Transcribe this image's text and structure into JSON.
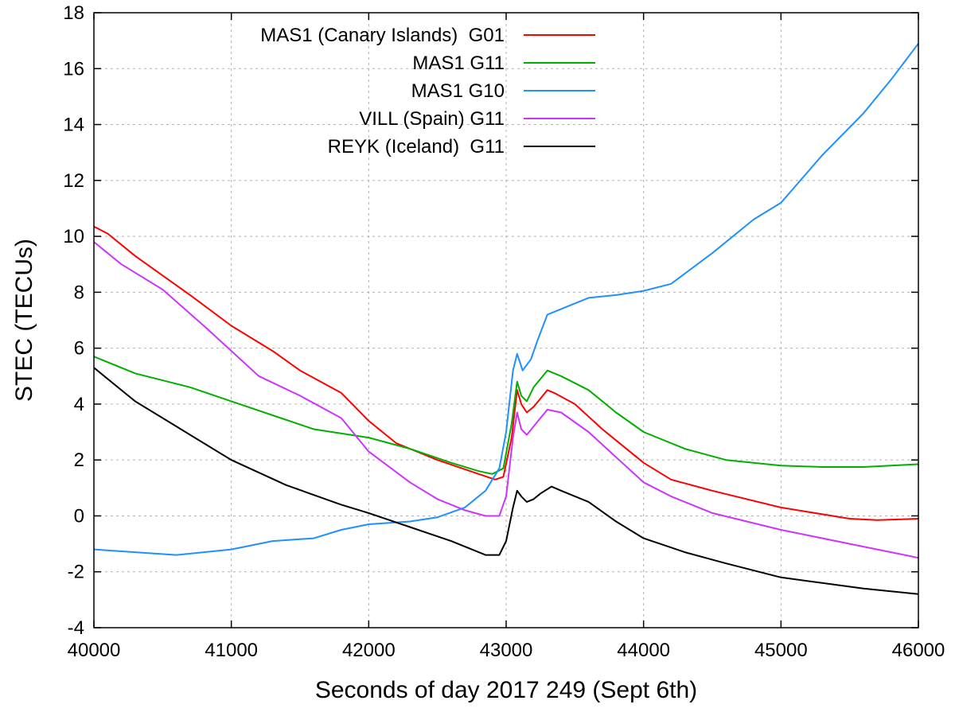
{
  "chart_data": {
    "type": "line",
    "xlabel": "Seconds of day 2017 249 (Sept 6th)",
    "ylabel": "STEC (TECUs)",
    "xlim": [
      40000,
      46000
    ],
    "ylim": [
      -4,
      18
    ],
    "xticks": [
      40000,
      41000,
      42000,
      43000,
      44000,
      45000,
      46000
    ],
    "yticks": [
      -4,
      -2,
      0,
      2,
      4,
      6,
      8,
      10,
      12,
      14,
      16,
      18
    ],
    "grid": true,
    "legend_position": "top-right",
    "series": [
      {
        "name": "MAS1 (Canary Islands)  G01",
        "color": "#ff0000",
        "x": [
          40000,
          40100,
          40300,
          40500,
          40700,
          41000,
          41300,
          41500,
          41800,
          42000,
          42200,
          42500,
          42800,
          42920,
          42980,
          43040,
          43080,
          43110,
          43150,
          43200,
          43250,
          43300,
          43350,
          43500,
          43700,
          44000,
          44200,
          44500,
          45000,
          45500,
          45700,
          46000
        ],
        "y": [
          10.35,
          10.1,
          9.3,
          8.6,
          7.9,
          6.8,
          5.9,
          5.2,
          4.4,
          3.4,
          2.6,
          2.0,
          1.5,
          1.3,
          1.4,
          2.8,
          4.5,
          4.0,
          3.7,
          3.9,
          4.2,
          4.5,
          4.4,
          4.0,
          3.1,
          1.9,
          1.3,
          0.9,
          0.3,
          -0.1,
          -0.15,
          -0.1
        ]
      },
      {
        "name": "MAS1 G11",
        "color": "#00b000",
        "x": [
          40000,
          40300,
          40700,
          41000,
          41300,
          41600,
          42000,
          42300,
          42600,
          42800,
          42900,
          42980,
          43040,
          43080,
          43110,
          43150,
          43200,
          43300,
          43400,
          43600,
          43800,
          44000,
          44300,
          44600,
          45000,
          45300,
          45600,
          46000
        ],
        "y": [
          5.7,
          5.1,
          4.6,
          4.1,
          3.6,
          3.1,
          2.8,
          2.4,
          1.9,
          1.6,
          1.5,
          1.7,
          3.3,
          4.8,
          4.3,
          4.1,
          4.6,
          5.2,
          5.0,
          4.5,
          3.7,
          3.0,
          2.4,
          2.0,
          1.8,
          1.75,
          1.75,
          1.85
        ]
      },
      {
        "name": "MAS1 G10",
        "color": "#1e90ff",
        "x": [
          40000,
          40300,
          40600,
          40800,
          41000,
          41300,
          41600,
          41800,
          42000,
          42300,
          42500,
          42700,
          42850,
          42950,
          43000,
          43050,
          43080,
          43120,
          43180,
          43230,
          43300,
          43400,
          43600,
          43800,
          44000,
          44200,
          44500,
          44800,
          45000,
          45300,
          45600,
          45800,
          46000
        ],
        "y": [
          -1.2,
          -1.3,
          -1.4,
          -1.3,
          -1.2,
          -0.9,
          -0.8,
          -0.5,
          -0.3,
          -0.2,
          -0.05,
          0.3,
          0.9,
          1.7,
          3.0,
          5.2,
          5.8,
          5.2,
          5.6,
          6.3,
          7.2,
          7.4,
          7.8,
          7.9,
          8.05,
          8.3,
          9.4,
          10.6,
          11.2,
          12.9,
          14.4,
          15.6,
          16.9
        ]
      },
      {
        "name": "VILL (Spain) G11",
        "color": "#cc33ff",
        "x": [
          40000,
          40200,
          40500,
          40800,
          41000,
          41200,
          41500,
          41800,
          42000,
          42300,
          42500,
          42700,
          42850,
          42950,
          43000,
          43050,
          43080,
          43110,
          43150,
          43200,
          43300,
          43400,
          43600,
          43800,
          44000,
          44200,
          44500,
          45000,
          45500,
          45800,
          46000
        ],
        "y": [
          9.8,
          9.0,
          8.1,
          6.8,
          5.9,
          5.0,
          4.3,
          3.5,
          2.3,
          1.2,
          0.6,
          0.2,
          0.0,
          0.0,
          0.7,
          2.8,
          3.7,
          3.1,
          2.9,
          3.2,
          3.8,
          3.7,
          3.0,
          2.1,
          1.2,
          0.7,
          0.1,
          -0.5,
          -1.0,
          -1.3,
          -1.5
        ]
      },
      {
        "name": "REYK (Iceland)  G11",
        "color": "#000000",
        "x": [
          40000,
          40300,
          40600,
          41000,
          41400,
          41800,
          42000,
          42300,
          42600,
          42850,
          42950,
          43000,
          43050,
          43080,
          43110,
          43150,
          43200,
          43250,
          43330,
          43400,
          43600,
          43800,
          44000,
          44300,
          44600,
          45000,
          45300,
          45600,
          46000
        ],
        "y": [
          5.3,
          4.1,
          3.2,
          2.0,
          1.1,
          0.4,
          0.1,
          -0.4,
          -0.9,
          -1.4,
          -1.4,
          -0.9,
          0.3,
          0.9,
          0.7,
          0.5,
          0.6,
          0.8,
          1.05,
          0.9,
          0.5,
          -0.2,
          -0.8,
          -1.3,
          -1.7,
          -2.2,
          -2.4,
          -2.6,
          -2.8
        ]
      }
    ]
  }
}
